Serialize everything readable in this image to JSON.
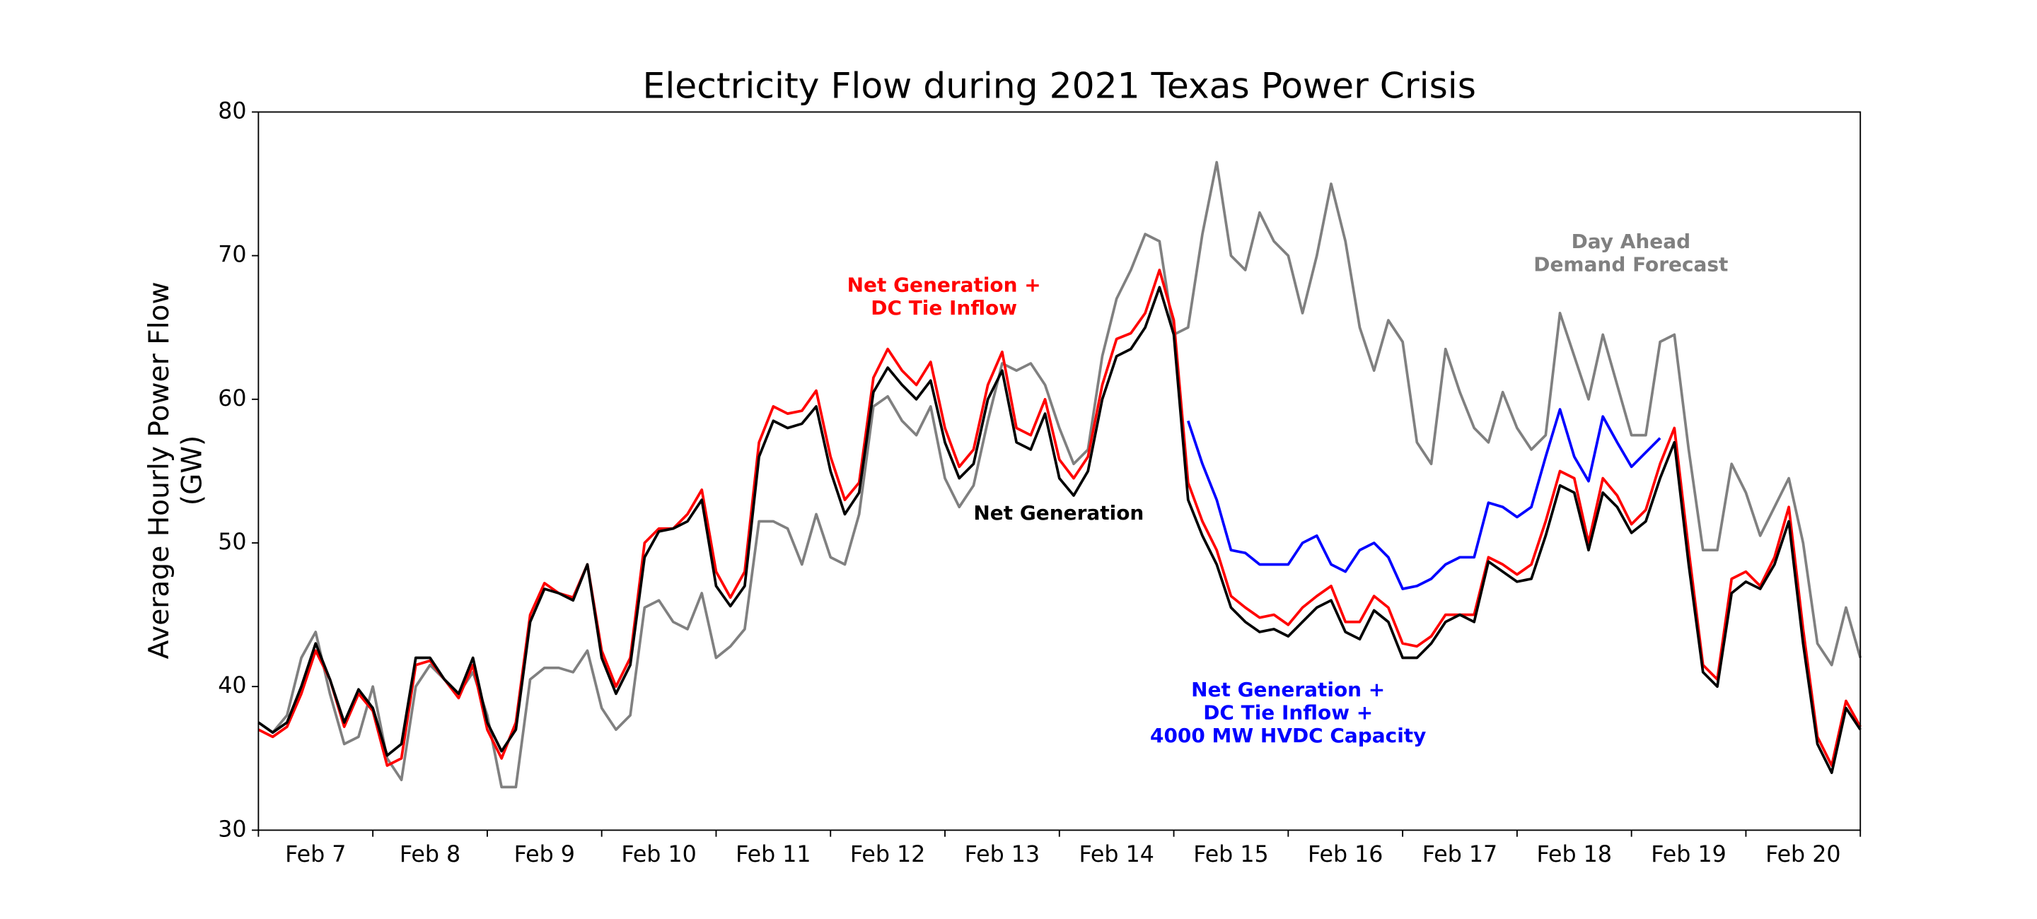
{
  "chart_data": {
    "type": "line",
    "title": "Electricity Flow during 2021 Texas Power Crisis",
    "y_label": [
      "Average Hourly Power Flow",
      "(GW)"
    ],
    "xlim": [
      0,
      14
    ],
    "ylim": [
      30,
      80
    ],
    "yticks": [
      30,
      40,
      50,
      60,
      70,
      80
    ],
    "xticks": [
      {
        "value": 0.5,
        "label": "Feb 7"
      },
      {
        "value": 1.5,
        "label": "Feb 8"
      },
      {
        "value": 2.5,
        "label": "Feb 9"
      },
      {
        "value": 3.5,
        "label": "Feb 10"
      },
      {
        "value": 4.5,
        "label": "Feb 11"
      },
      {
        "value": 5.5,
        "label": "Feb 12"
      },
      {
        "value": 6.5,
        "label": "Feb 13"
      },
      {
        "value": 7.5,
        "label": "Feb 14"
      },
      {
        "value": 8.5,
        "label": "Feb 15"
      },
      {
        "value": 9.5,
        "label": "Feb 16"
      },
      {
        "value": 10.5,
        "label": "Feb 17"
      },
      {
        "value": 11.5,
        "label": "Feb 18"
      },
      {
        "value": 12.5,
        "label": "Feb 19"
      },
      {
        "value": 13.5,
        "label": "Feb 20"
      }
    ],
    "xminorticks": [
      0,
      1,
      2,
      3,
      4,
      5,
      6,
      7,
      8,
      9,
      10,
      11,
      12,
      13,
      14
    ],
    "x": [
      0,
      0.125,
      0.25,
      0.375,
      0.5,
      0.625,
      0.75,
      0.875,
      1,
      1.125,
      1.25,
      1.375,
      1.5,
      1.625,
      1.75,
      1.875,
      2,
      2.125,
      2.25,
      2.375,
      2.5,
      2.625,
      2.75,
      2.875,
      3,
      3.125,
      3.25,
      3.375,
      3.5,
      3.625,
      3.75,
      3.875,
      4,
      4.125,
      4.25,
      4.375,
      4.5,
      4.625,
      4.75,
      4.875,
      5,
      5.125,
      5.25,
      5.375,
      5.5,
      5.625,
      5.75,
      5.875,
      6,
      6.125,
      6.25,
      6.375,
      6.5,
      6.625,
      6.75,
      6.875,
      7,
      7.125,
      7.25,
      7.375,
      7.5,
      7.625,
      7.75,
      7.875,
      8,
      8.125,
      8.25,
      8.375,
      8.5,
      8.625,
      8.75,
      8.875,
      9,
      9.125,
      9.25,
      9.375,
      9.5,
      9.625,
      9.75,
      9.875,
      10,
      10.125,
      10.25,
      10.375,
      10.5,
      10.625,
      10.75,
      10.875,
      11,
      11.125,
      11.25,
      11.375,
      11.5,
      11.625,
      11.75,
      11.875,
      12,
      12.125,
      12.25,
      12.375,
      12.5,
      12.625,
      12.75,
      12.875,
      13,
      13.125,
      13.25,
      13.375,
      13.5,
      13.625,
      13.75,
      13.875,
      14
    ],
    "series": [
      {
        "label": [
          "Day Ahead",
          "Demand Forecast"
        ],
        "color": "#808080",
        "values": [
          37.5,
          36.8,
          38,
          42,
          43.8,
          39.5,
          36,
          36.5,
          40,
          35,
          33.5,
          40,
          41.5,
          40.5,
          39.5,
          41,
          38,
          33,
          33,
          40.5,
          41.3,
          41.3,
          41,
          42.5,
          38.5,
          37,
          38,
          45.5,
          46,
          44.5,
          44,
          46.5,
          42,
          42.8,
          44,
          51.5,
          51.5,
          51,
          48.5,
          52,
          49,
          48.5,
          52,
          59.5,
          60.2,
          58.5,
          57.5,
          59.5,
          54.5,
          52.5,
          54,
          58.5,
          62.5,
          62,
          62.5,
          61,
          58,
          55.5,
          56.5,
          63,
          67,
          69,
          71.5,
          71,
          64.5,
          65,
          71.5,
          76.5,
          70,
          69,
          73,
          71,
          70,
          66,
          70,
          75,
          71,
          65,
          62,
          65.5,
          64,
          57,
          55.5,
          63.5,
          60.5,
          58,
          57,
          60.5,
          58,
          56.5,
          57.5,
          66,
          63,
          60,
          64.5,
          61,
          57.5,
          57.5,
          64,
          64.5,
          56.5,
          49.5,
          49.5,
          55.5,
          53.5,
          50.5,
          52.5,
          54.5,
          50,
          43,
          41.5,
          45.5,
          42
        ]
      },
      {
        "label": [
          "Net Generation +",
          "DC Tie Inflow +",
          "4000 MW HVDC Capacity"
        ],
        "color": "#0000ff",
        "values": [
          null,
          null,
          null,
          null,
          null,
          null,
          null,
          null,
          null,
          null,
          null,
          null,
          null,
          null,
          null,
          null,
          null,
          null,
          null,
          null,
          null,
          null,
          null,
          null,
          null,
          null,
          null,
          null,
          null,
          null,
          null,
          null,
          null,
          null,
          null,
          null,
          null,
          null,
          null,
          null,
          null,
          null,
          null,
          null,
          null,
          null,
          null,
          null,
          null,
          null,
          null,
          null,
          null,
          null,
          null,
          null,
          null,
          null,
          null,
          null,
          null,
          null,
          null,
          null,
          null,
          58.5,
          55.5,
          53,
          49.5,
          49.3,
          48.5,
          48.5,
          48.5,
          50,
          50.5,
          48.5,
          48,
          49.5,
          50,
          49,
          46.8,
          47,
          47.5,
          48.5,
          49,
          49,
          52.8,
          52.5,
          51.8,
          52.5,
          56,
          59.3,
          56,
          54.3,
          58.8,
          57,
          55.3,
          56.3,
          57.3,
          null,
          null,
          null,
          null,
          null,
          null,
          null,
          null,
          null,
          null,
          null,
          null,
          null,
          null
        ]
      },
      {
        "label": [
          "Net Generation +",
          "DC Tie Inflow"
        ],
        "color": "#ff0000",
        "values": [
          37,
          36.5,
          37.2,
          39.5,
          42.5,
          40.5,
          37.2,
          39.5,
          38.3,
          34.5,
          35,
          41.5,
          41.8,
          40.5,
          39.2,
          41.5,
          37,
          35,
          37.5,
          45,
          47.2,
          46.5,
          46.2,
          48.5,
          42.5,
          40,
          42,
          50,
          51,
          51,
          52,
          53.7,
          48,
          46.2,
          48,
          57,
          59.5,
          59,
          59.2,
          60.6,
          56,
          53,
          54.2,
          61.5,
          63.5,
          62,
          61,
          62.6,
          58,
          55.3,
          56.5,
          61,
          63.3,
          58,
          57.5,
          60,
          55.8,
          54.5,
          56,
          61,
          64.2,
          64.6,
          66,
          69,
          65.5,
          54.2,
          51.5,
          49.5,
          46.3,
          45.5,
          44.8,
          45,
          44.3,
          45.5,
          46.3,
          47,
          44.5,
          44.5,
          46.3,
          45.5,
          43,
          42.8,
          43.5,
          45,
          45,
          45,
          49,
          48.5,
          47.8,
          48.5,
          51.5,
          55,
          54.5,
          50,
          54.5,
          53.3,
          51.3,
          52.3,
          55.5,
          58,
          49.5,
          41.5,
          40.5,
          47.5,
          48,
          47,
          49,
          52.5,
          44,
          36.5,
          34.5,
          39,
          37.2
        ]
      },
      {
        "label": [
          "Net Generation"
        ],
        "color": "#000000",
        "values": [
          37.5,
          36.8,
          37.5,
          40,
          43,
          40.5,
          37.5,
          39.8,
          38.5,
          35.2,
          36,
          42,
          42,
          40.5,
          39.5,
          42,
          37.5,
          35.5,
          37,
          44.5,
          46.8,
          46.5,
          46,
          48.5,
          42,
          39.5,
          41.5,
          49,
          50.8,
          51,
          51.5,
          53,
          47,
          45.6,
          47,
          56,
          58.5,
          58,
          58.3,
          59.5,
          55,
          52,
          53.5,
          60.5,
          62.2,
          61,
          60,
          61.3,
          57,
          54.5,
          55.5,
          60,
          62,
          57,
          56.5,
          59,
          54.5,
          53.3,
          55,
          60,
          63,
          63.5,
          65,
          67.8,
          64.5,
          53,
          50.5,
          48.5,
          45.5,
          44.5,
          43.8,
          44,
          43.5,
          44.5,
          45.5,
          46,
          43.8,
          43.3,
          45.3,
          44.5,
          42,
          42,
          43,
          44.5,
          45,
          44.5,
          48.7,
          48,
          47.3,
          47.5,
          50.5,
          54,
          53.5,
          49.5,
          53.5,
          52.5,
          50.7,
          51.5,
          54.5,
          57,
          48.5,
          41,
          40,
          46.5,
          47.3,
          46.8,
          48.5,
          51.5,
          43,
          36,
          34,
          38.5,
          37
        ]
      }
    ]
  }
}
